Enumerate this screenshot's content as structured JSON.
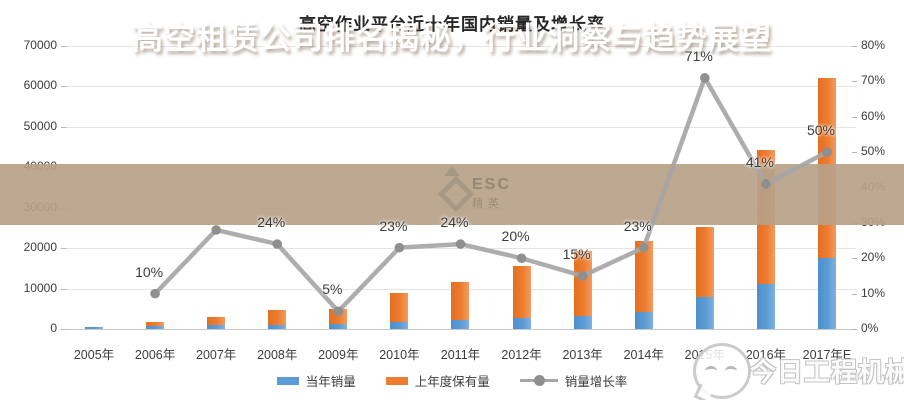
{
  "chart_data": {
    "type": "bar",
    "subtype": "stacked-bars-with-line",
    "title": "高空作业平台近十年国内销量及增长率",
    "categories": [
      "2005年",
      "2006年",
      "2007年",
      "2008年",
      "2009年",
      "2010年",
      "2011年",
      "2012年",
      "2013年",
      "2014年",
      "2015年",
      "2016年",
      "2017年E"
    ],
    "series": [
      {
        "name": "当年销量",
        "type": "bar",
        "color": "#5b9bd5",
        "values": [
          500,
          700,
          900,
          1100,
          1200,
          1700,
          2200,
          2800,
          3200,
          4200,
          7800,
          11100,
          17500
        ]
      },
      {
        "name": "上年度保有量",
        "type": "bar",
        "color": "#ed7d31",
        "values": [
          0,
          1000,
          2000,
          3700,
          3800,
          7300,
          9500,
          12800,
          16200,
          17600,
          17500,
          33100,
          44500
        ]
      },
      {
        "name": "销量增长率",
        "type": "line",
        "color": "#a6a6a6",
        "axis": "right",
        "values": [
          null,
          10,
          28,
          24,
          5,
          23,
          24,
          20,
          15,
          23,
          71,
          41,
          50
        ],
        "labels": [
          "",
          "10%",
          "",
          "24%",
          "5%",
          "23%",
          "24%",
          "20%",
          "15%",
          "23%",
          "71%",
          "41%",
          "50%"
        ]
      }
    ],
    "left_axis": {
      "min": 0,
      "max": 70000,
      "step": 10000,
      "ticks": [
        "70000",
        "60000",
        "50000",
        "40000",
        "30000",
        "20000",
        "10000",
        "0"
      ]
    },
    "right_axis": {
      "min": 0,
      "max": 80,
      "step": 10,
      "ticks": [
        "80%",
        "70%",
        "60%",
        "50%",
        "40%",
        "30%",
        "20%",
        "10%",
        "0%"
      ]
    },
    "grid": true,
    "legend_position": "bottom"
  },
  "overlay": {
    "banner_text": "高空租赁公司排名揭秘，行业洞察与趋势展望",
    "banner_bg": "#b7a188",
    "text_color": "#ffffff"
  },
  "watermarks": {
    "esc": {
      "icon": "diamond-logo",
      "line1": "ESC",
      "line2": "精英"
    },
    "wechat": {
      "icon": "chat-bubble-smiley",
      "text": "今日工程机械"
    }
  }
}
